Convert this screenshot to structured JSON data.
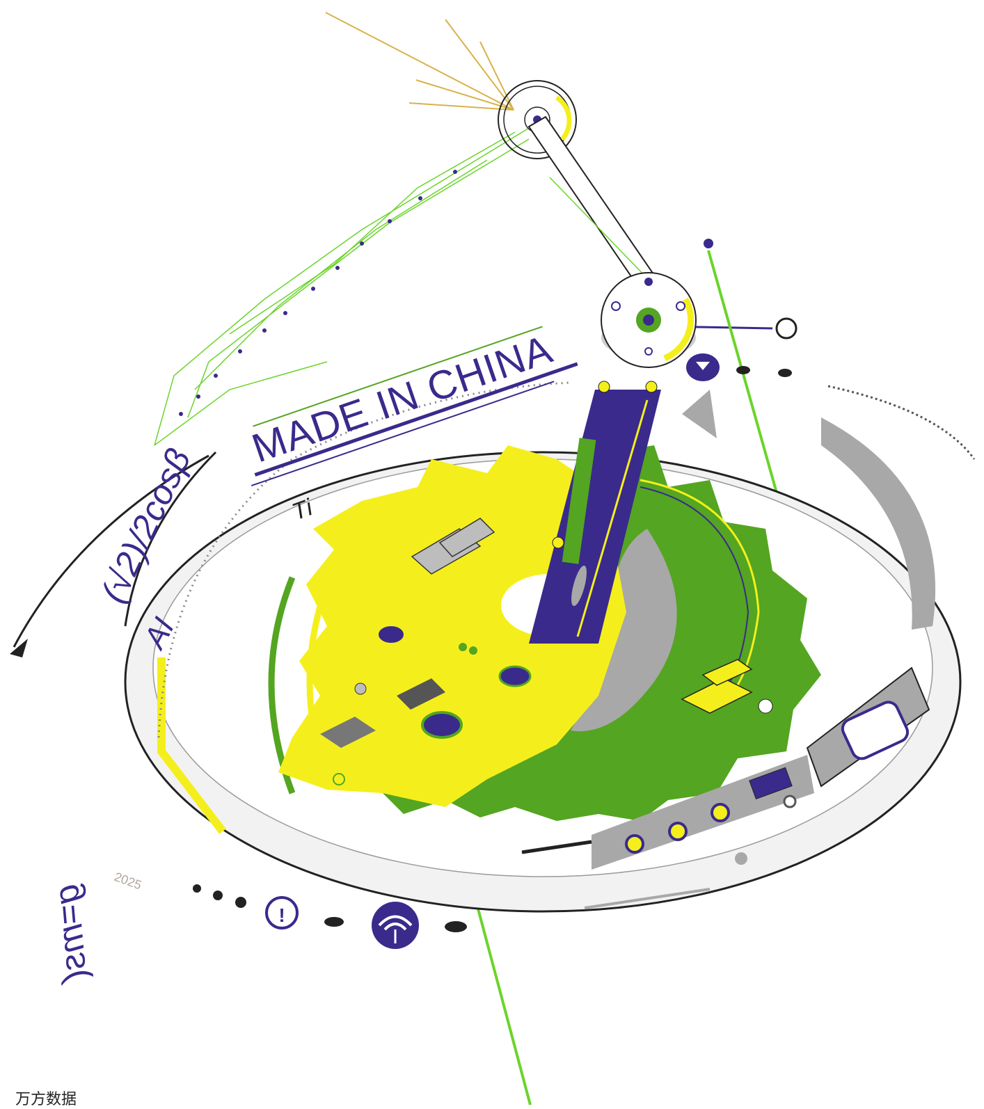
{
  "poster": {
    "headline": "MADE IN CHINA",
    "formula_left": "(√2)/2cosβ",
    "formula_bottom": "g=ms(",
    "label_ai": "AI",
    "label_ti": "Ti",
    "year": "2025",
    "watermark": "万方数据"
  },
  "colors": {
    "yellow": "#f4ef1c",
    "green": "#54a521",
    "bright_green": "#6bd42b",
    "purple": "#3a2a8c",
    "gray": "#a8a8a8",
    "dark": "#222222",
    "gold": "#d8b24a"
  }
}
